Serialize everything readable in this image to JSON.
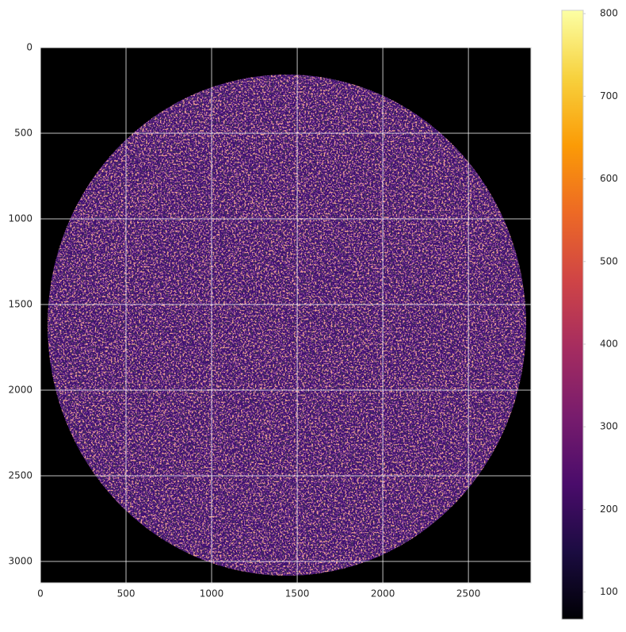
{
  "chart_data": {
    "type": "image",
    "xlim": [
      0,
      2865
    ],
    "xticks": [
      0,
      500,
      1000,
      1500,
      2000,
      2500
    ],
    "ylim": [
      3125,
      0
    ],
    "yticks": [
      0,
      500,
      1000,
      1500,
      2000,
      2500,
      3000
    ],
    "grid": true,
    "colormap": "inferno",
    "colorbar": {
      "lim": [
        67,
        804
      ],
      "ticks": [
        100,
        200,
        300,
        400,
        500,
        600,
        700,
        800
      ]
    }
  }
}
